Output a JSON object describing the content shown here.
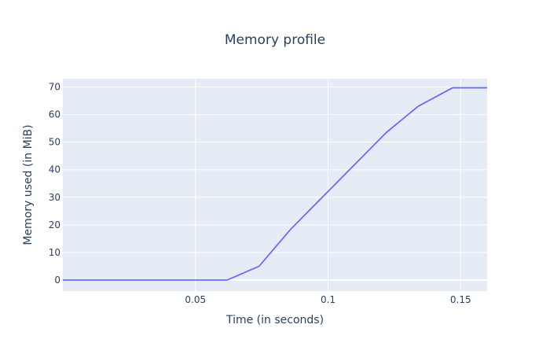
{
  "chart_data": {
    "type": "line",
    "title": "Memory profile",
    "xlabel": "Time (in seconds)",
    "ylabel": "Memory used (in MiB)",
    "xlim": [
      0.0,
      0.16
    ],
    "ylim": [
      -4,
      73
    ],
    "xticks": [
      0.05,
      0.1,
      0.15
    ],
    "xtick_labels": [
      "0.05",
      "0.1",
      "0.15"
    ],
    "yticks": [
      0,
      10,
      20,
      30,
      40,
      50,
      60,
      70
    ],
    "ytick_labels": [
      "0",
      "10",
      "20",
      "30",
      "40",
      "50",
      "60",
      "70"
    ],
    "grid": true,
    "legend": "none",
    "series": [
      {
        "x": [
          0.0,
          0.062,
          0.074,
          0.086,
          0.122,
          0.134,
          0.147,
          0.16
        ],
        "y": [
          0,
          0,
          5,
          18.5,
          53.5,
          63,
          69.7,
          69.7
        ]
      }
    ]
  },
  "colors": {
    "plot_bg": "#e5ecf6",
    "grid": "#ffffff",
    "line": "#636efa",
    "text": "#2a3f5f"
  }
}
